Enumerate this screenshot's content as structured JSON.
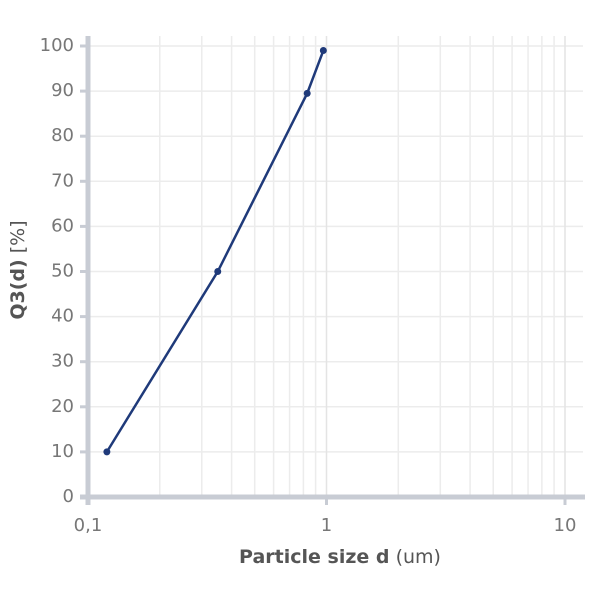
{
  "chart_data": {
    "type": "line",
    "xlabel": {
      "name": "Particle size d",
      "unit": "(um)"
    },
    "ylabel": {
      "name": "Q3(d)",
      "unit": "[%]"
    },
    "x": [
      0.12,
      0.35,
      0.83,
      0.97
    ],
    "series": [
      {
        "color": "#1f3a7a",
        "values": [
          10,
          50,
          89.5,
          99
        ]
      }
    ],
    "xlim": [
      0.1,
      10
    ],
    "xlog": true,
    "xticks": [
      {
        "value": 0.1,
        "label": "0,1"
      },
      1,
      10
    ],
    "ylim": [
      0,
      100
    ],
    "yticks": [
      0,
      10,
      20,
      30,
      40,
      50,
      60,
      70,
      80,
      90,
      100
    ],
    "grid": true
  }
}
